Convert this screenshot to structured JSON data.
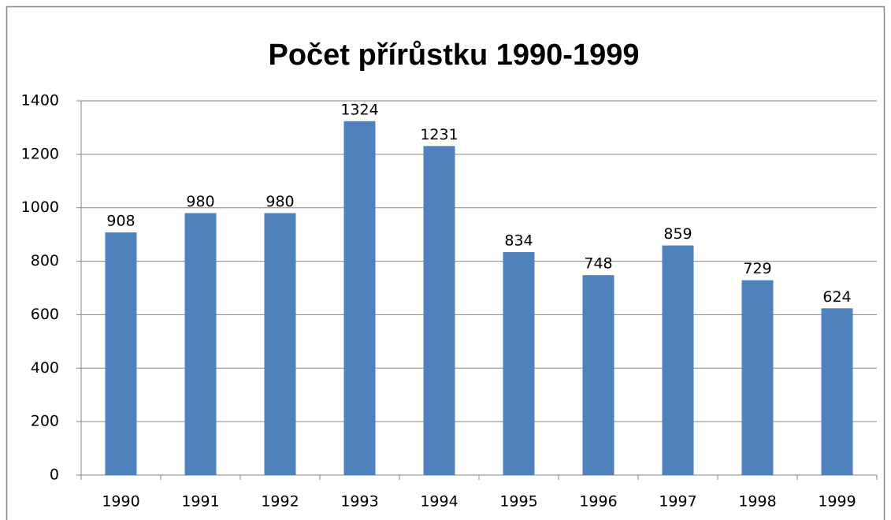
{
  "chart_data": {
    "type": "bar",
    "title": "Počet přírůstku 1990-1999",
    "categories": [
      "1990",
      "1991",
      "1992",
      "1993",
      "1994",
      "1995",
      "1996",
      "1997",
      "1998",
      "1999"
    ],
    "values": [
      908,
      980,
      980,
      1324,
      1231,
      834,
      748,
      859,
      729,
      624
    ],
    "color": "#4f81bd",
    "ylim": [
      0,
      1400
    ],
    "yticks": [
      0,
      200,
      400,
      600,
      800,
      1000,
      1200,
      1400
    ],
    "grid": true,
    "data_labels": true
  }
}
